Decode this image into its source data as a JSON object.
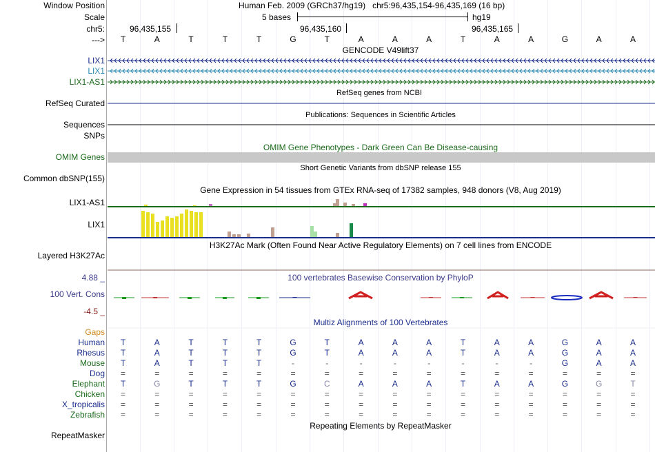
{
  "header": {
    "window_label": "Window Position",
    "window_text": "Human Feb. 2009 (GRCh37/hg19)   chr5:96,435,154-96,435,169 (16 bp)",
    "scale_label": "Scale",
    "scale_text": "5 bases",
    "scale_assembly": "hg19",
    "chr_label": "chr5:",
    "arrow_label": "--->",
    "coords": [
      "96,435,155",
      "96,435,160",
      "96,435,165"
    ]
  },
  "sequence": [
    "T",
    "A",
    "T",
    "T",
    "T",
    "G",
    "T",
    "A",
    "A",
    "A",
    "T",
    "A",
    "A",
    "G",
    "A",
    "A"
  ],
  "tracks": {
    "gencode_title": "GENCODE V49lift37",
    "gencode_genes": [
      {
        "name": "LIX1",
        "color": "#1a2c8c"
      },
      {
        "name": "LIX1",
        "color": "#2a8ab0"
      },
      {
        "name": "LIX1-AS1",
        "color": "#1a6a1a"
      }
    ],
    "refseq_title": "RefSeq genes from NCBI",
    "refseq_label": "RefSeq Curated",
    "pub_title": "Publications: Sequences in Scientific Articles",
    "sequences_label": "Sequences",
    "snps_label": "SNPs",
    "omim_title": "OMIM Gene Phenotypes - Dark Green Can Be Disease-causing",
    "omim_label": "OMIM Genes",
    "dbsnp_title": "Short Genetic Variants from dbSNP release 155",
    "dbsnp_label": "Common dbSNP(155)",
    "gtex_title": "Gene Expression in 54 tissues from GTEx RNA-seq of 17382 samples, 948 donors (V8, Aug 2019)",
    "gtex_label_1": "LIX1-AS1",
    "gtex_label_2": "LIX1",
    "h3k27_title": "H3K27Ac Mark (Often Found Near Active Regulatory Elements) on 7 cell lines from ENCODE",
    "h3k27_label": "Layered H3K27Ac",
    "phylop_title": "100 vertebrates Basewise Conservation by PhyloP",
    "phylop_label": "100 Vert. Cons",
    "phylop_max": "4.88 _",
    "phylop_min": "-4.5 _",
    "multiz_title": "Multiz Alignments of 100 Vertebrates",
    "gaps_label": "Gaps",
    "repeat_title": "Repeating Elements by RepeatMasker",
    "repeat_label": "RepeatMasker"
  },
  "alignment": [
    {
      "species": "Human",
      "color": "#1a2c8c",
      "bases": [
        "T",
        "A",
        "T",
        "T",
        "T",
        "G",
        "T",
        "A",
        "A",
        "A",
        "T",
        "A",
        "A",
        "G",
        "A",
        "A"
      ]
    },
    {
      "species": "Rhesus",
      "color": "#1a2c8c",
      "bases": [
        "T",
        "A",
        "T",
        "T",
        "T",
        "G",
        "T",
        "A",
        "A",
        "A",
        "T",
        "A",
        "A",
        "G",
        "A",
        "A"
      ]
    },
    {
      "species": "Mouse",
      "color": "#1a6a1a",
      "bases": [
        "T",
        "A",
        "T",
        "T",
        "T",
        "-",
        "-",
        "-",
        "-",
        "-",
        "-",
        "-",
        "-",
        "G",
        "A",
        "A"
      ]
    },
    {
      "species": "Dog",
      "color": "#1a2c8c",
      "bases": [
        "=",
        "=",
        "=",
        "=",
        "=",
        "=",
        "=",
        "=",
        "=",
        "=",
        "=",
        "=",
        "=",
        "=",
        "=",
        "="
      ]
    },
    {
      "species": "Elephant",
      "color": "#1a6a1a",
      "bases": [
        "T",
        "G",
        "T",
        "T",
        "T",
        "G",
        "C",
        "A",
        "A",
        "A",
        "T",
        "A",
        "A",
        "G",
        "G",
        "T"
      ]
    },
    {
      "species": "Chicken",
      "color": "#1a6a1a",
      "bases": [
        "=",
        "=",
        "=",
        "=",
        "=",
        "=",
        "=",
        "=",
        "=",
        "=",
        "=",
        "=",
        "=",
        "=",
        "=",
        "="
      ]
    },
    {
      "species": "X_tropicalis",
      "color": "#1a2c8c",
      "bases": [
        "=",
        "=",
        "=",
        "=",
        "=",
        "=",
        "=",
        "=",
        "=",
        "=",
        "=",
        "=",
        "=",
        "=",
        "=",
        "="
      ]
    },
    {
      "species": "Zebrafish",
      "color": "#1a6a1a",
      "bases": [
        "=",
        "=",
        "=",
        "=",
        "=",
        "=",
        "=",
        "=",
        "=",
        "=",
        "=",
        "=",
        "=",
        "=",
        "=",
        "="
      ]
    }
  ],
  "colors": {
    "dark_blue": "#1a2c8c",
    "teal": "#2a8ab0",
    "dark_green": "#1a6a1a",
    "omim_gray": "#c8c8c8",
    "gaps_orange": "#d08a1a",
    "phylop_label": "#3a3a8a",
    "phylop_min": "#8a1a1a"
  }
}
